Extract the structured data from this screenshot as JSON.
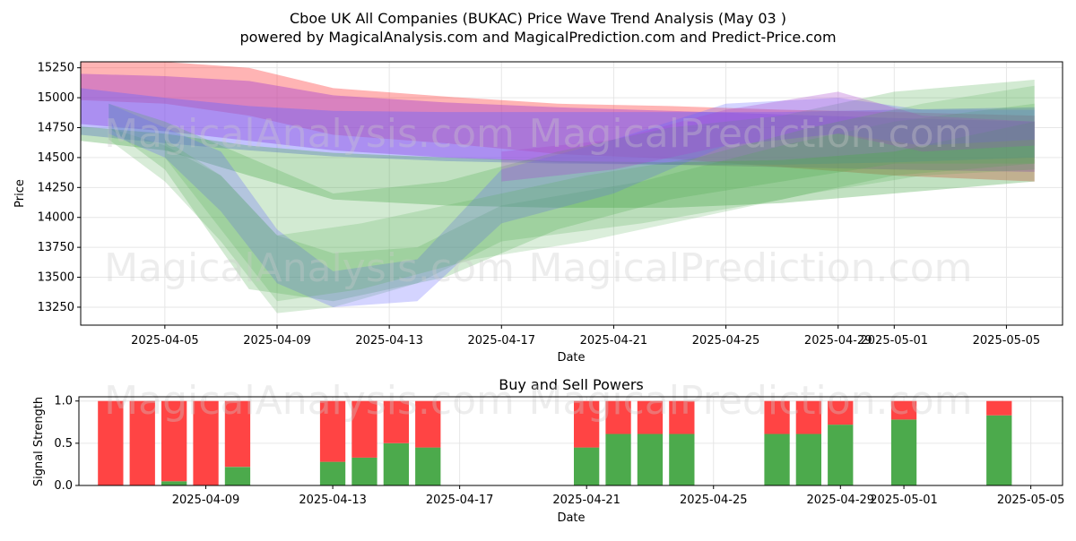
{
  "title": "Cboe UK All Companies (BUKAC) Price Wave Trend Analysis (May 03 )",
  "subtitle": "powered by MagicalAnalysis.com and MagicalPrediction.com and Predict-Price.com",
  "watermarks": [
    "MagicalAnalysis.com",
    "MagicalPrediction.com"
  ],
  "colors": {
    "red": "#ff4444",
    "green": "#4caa4c",
    "blue": "#6666ff",
    "purple": "#aa44cc",
    "grid": "#e6e6e6"
  },
  "chart_data": [
    {
      "type": "area",
      "xlabel": "Date",
      "ylabel": "Price",
      "ylim": [
        13100,
        15300
      ],
      "yticks": [
        13250,
        13500,
        13750,
        14000,
        14250,
        14500,
        14750,
        15000,
        15250
      ],
      "xticks": [
        "2025-04-05",
        "2025-04-09",
        "2025-04-13",
        "2025-04-17",
        "2025-04-21",
        "2025-04-25",
        "2025-04-29",
        "2025-05-01",
        "2025-05-05"
      ],
      "xlim": [
        "2025-04-02",
        "2025-05-07"
      ],
      "grid": true,
      "bands": [
        {
          "color": "red",
          "opacity": 0.4,
          "dates": [
            "2025-04-02",
            "2025-04-05",
            "2025-04-08",
            "2025-04-11",
            "2025-04-15",
            "2025-04-19",
            "2025-04-23",
            "2025-04-27",
            "2025-05-01",
            "2025-05-06"
          ],
          "upper": [
            15300,
            15300,
            15250,
            15080,
            15010,
            14950,
            14930,
            14900,
            14880,
            14850
          ],
          "lower": [
            14980,
            14950,
            14850,
            14690,
            14620,
            14530,
            14490,
            14420,
            14350,
            14300
          ]
        },
        {
          "color": "purple",
          "opacity": 0.45,
          "dates": [
            "2025-04-02",
            "2025-04-05",
            "2025-04-08",
            "2025-04-11",
            "2025-04-15",
            "2025-04-19",
            "2025-04-23",
            "2025-04-27",
            "2025-05-01",
            "2025-05-06"
          ],
          "upper": [
            15200,
            15180,
            15140,
            15020,
            14960,
            14920,
            14890,
            14860,
            14830,
            14800
          ],
          "lower": [
            14780,
            14720,
            14640,
            14560,
            14500,
            14460,
            14440,
            14420,
            14400,
            14380
          ]
        },
        {
          "color": "blue",
          "opacity": 0.4,
          "dates": [
            "2025-04-02",
            "2025-04-05",
            "2025-04-08",
            "2025-04-11",
            "2025-04-15",
            "2025-04-19",
            "2025-04-23",
            "2025-04-27",
            "2025-05-01",
            "2025-05-06"
          ],
          "upper": [
            15080,
            15000,
            14930,
            14890,
            14880,
            14880,
            14880,
            14880,
            14900,
            14920
          ],
          "lower": [
            14690,
            14620,
            14560,
            14510,
            14470,
            14450,
            14440,
            14440,
            14460,
            14500
          ]
        },
        {
          "color": "green",
          "opacity": 0.35,
          "dates": [
            "2025-04-02",
            "2025-04-05",
            "2025-04-08",
            "2025-04-11",
            "2025-04-15",
            "2025-04-19",
            "2025-04-23",
            "2025-04-27",
            "2025-05-01",
            "2025-05-06"
          ],
          "upper": [
            14760,
            14700,
            14600,
            14540,
            14500,
            14470,
            14460,
            14480,
            14550,
            14800
          ],
          "lower": [
            14640,
            14560,
            14350,
            14150,
            14100,
            14080,
            14080,
            14120,
            14200,
            14300
          ]
        },
        {
          "color": "green",
          "opacity": 0.25,
          "dates": [
            "2025-04-03",
            "2025-04-05",
            "2025-04-08",
            "2025-04-11",
            "2025-04-15",
            "2025-04-19",
            "2025-04-23",
            "2025-04-27",
            "2025-05-01",
            "2025-05-06"
          ],
          "upper": [
            14950,
            14800,
            14500,
            14200,
            14300,
            14550,
            14750,
            14850,
            15050,
            15150
          ],
          "lower": [
            14750,
            14400,
            13400,
            13300,
            13500,
            13900,
            14150,
            14300,
            14450,
            14450
          ]
        },
        {
          "color": "green",
          "opacity": 0.22,
          "dates": [
            "2025-04-03",
            "2025-04-05",
            "2025-04-07",
            "2025-04-09",
            "2025-04-11",
            "2025-04-14",
            "2025-04-17",
            "2025-04-22",
            "2025-04-27",
            "2025-05-01",
            "2025-05-06"
          ],
          "upper": [
            14750,
            14600,
            14350,
            13850,
            13700,
            13750,
            14100,
            14300,
            14600,
            14800,
            14950
          ],
          "lower": [
            14650,
            14300,
            13800,
            13200,
            13250,
            13450,
            13800,
            13950,
            14150,
            14350,
            14450
          ]
        },
        {
          "color": "blue",
          "opacity": 0.28,
          "dates": [
            "2025-04-03",
            "2025-04-05",
            "2025-04-07",
            "2025-04-09",
            "2025-04-11",
            "2025-04-14",
            "2025-04-17",
            "2025-04-21",
            "2025-04-25",
            "2025-04-29",
            "2025-05-02",
            "2025-05-06"
          ],
          "upper": [
            14950,
            14750,
            14550,
            13900,
            13550,
            13650,
            14400,
            14650,
            14950,
            15000,
            14900,
            14900
          ],
          "lower": [
            14700,
            14500,
            14050,
            13450,
            13250,
            13300,
            13950,
            14200,
            14600,
            14700,
            14600,
            14650
          ]
        },
        {
          "color": "purple",
          "opacity": 0.3,
          "dates": [
            "2025-04-17",
            "2025-04-21",
            "2025-04-25",
            "2025-04-29",
            "2025-05-02",
            "2025-05-06"
          ],
          "upper": [
            14550,
            14650,
            14900,
            15050,
            14850,
            14800
          ],
          "lower": [
            14300,
            14400,
            14600,
            14700,
            14550,
            14600
          ]
        },
        {
          "color": "green",
          "opacity": 0.2,
          "dates": [
            "2025-04-05",
            "2025-04-07",
            "2025-04-09",
            "2025-04-12",
            "2025-04-16",
            "2025-04-20",
            "2025-04-24",
            "2025-04-28",
            "2025-05-02",
            "2025-05-06"
          ],
          "upper": [
            14650,
            14350,
            13850,
            13950,
            14150,
            14350,
            14500,
            14750,
            14950,
            15100
          ],
          "lower": [
            14500,
            13900,
            13300,
            13400,
            13650,
            13800,
            14000,
            14200,
            14350,
            14400
          ]
        }
      ]
    },
    {
      "type": "bar",
      "title": "Buy and Sell Powers",
      "xlabel": "Date",
      "ylabel": "Signal Strength",
      "ylim": [
        0,
        1.05
      ],
      "yticks": [
        "0.0",
        "0.5",
        "1.0"
      ],
      "xticks": [
        "2025-04-09",
        "2025-04-13",
        "2025-04-17",
        "2025-04-21",
        "2025-04-25",
        "2025-04-29",
        "2025-05-01",
        "2025-05-05"
      ],
      "xlim": [
        "2025-04-05",
        "2025-05-06"
      ],
      "series": [
        {
          "name": "",
          "color": "green",
          "dates": [
            "2025-04-06",
            "2025-04-07",
            "2025-04-08",
            "2025-04-09",
            "2025-04-10",
            "2025-04-13",
            "2025-04-14",
            "2025-04-15",
            "2025-04-16",
            "2025-04-21",
            "2025-04-22",
            "2025-04-23",
            "2025-04-24",
            "2025-04-27",
            "2025-04-28",
            "2025-04-29",
            "2025-05-01",
            "2025-05-04"
          ],
          "values": [
            0.0,
            0.0,
            0.05,
            0.0,
            0.22,
            0.28,
            0.33,
            0.5,
            0.45,
            0.45,
            0.61,
            0.61,
            0.61,
            0.61,
            0.61,
            0.72,
            0.78,
            0.83
          ]
        },
        {
          "name": "",
          "color": "red",
          "dates": [
            "2025-04-06",
            "2025-04-07",
            "2025-04-08",
            "2025-04-09",
            "2025-04-10",
            "2025-04-13",
            "2025-04-14",
            "2025-04-15",
            "2025-04-16",
            "2025-04-21",
            "2025-04-22",
            "2025-04-23",
            "2025-04-24",
            "2025-04-27",
            "2025-04-28",
            "2025-04-29",
            "2025-05-01",
            "2025-05-04"
          ],
          "values": [
            1.0,
            1.0,
            0.95,
            1.0,
            0.78,
            0.72,
            0.67,
            0.5,
            0.55,
            0.55,
            0.39,
            0.39,
            0.39,
            0.39,
            0.39,
            0.28,
            0.22,
            0.17
          ]
        }
      ]
    }
  ]
}
